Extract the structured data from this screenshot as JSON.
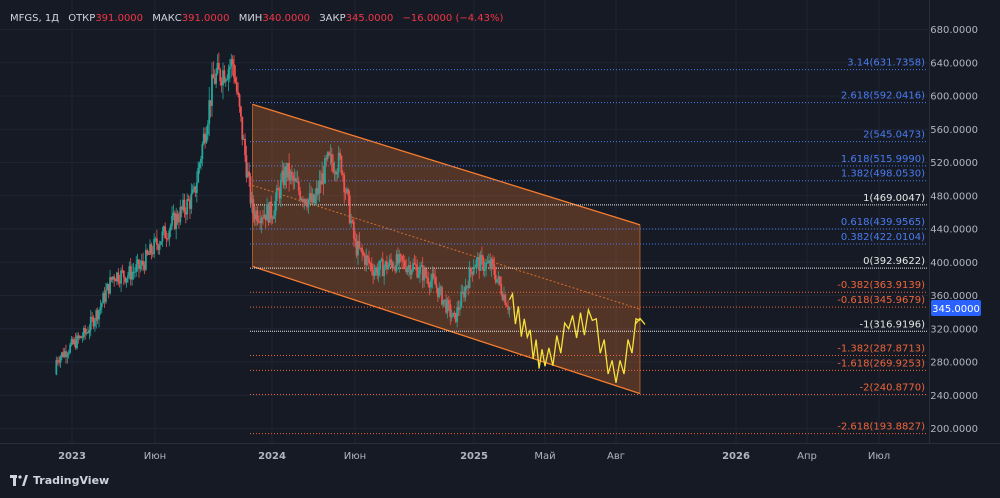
{
  "header": {
    "symbol": "MFGS, 1Д",
    "open_label": "ОТКР",
    "open": "391.0000",
    "high_label": "МАКС",
    "high": "391.0000",
    "low_label": "МИН",
    "low": "340.0000",
    "close_label": "ЗАКР",
    "close": "345.0000",
    "change": "−16.0000 (−4.43%)"
  },
  "brand": {
    "name": "TradingView",
    "icon": "tradingview-logo-icon"
  },
  "colors": {
    "background": "#161a25",
    "up": "#26a69a",
    "down": "#ef5350",
    "channel": "#f57c2f",
    "fib_pos": "#4a7cf0",
    "fib_neg": "#f0653a",
    "projection": "#f5e13a",
    "price_tag": "#2962ff"
  },
  "chart_data": {
    "type": "candlestick",
    "yaxis": {
      "ticks": [
        "680.0000",
        "640.0000",
        "600.0000",
        "560.0000",
        "520.0000",
        "480.0000",
        "440.0000",
        "400.0000",
        "360.0000",
        "320.0000",
        "280.0000",
        "240.0000",
        "200.0000"
      ],
      "range": [
        180,
        700
      ]
    },
    "xaxis": {
      "ticks": [
        "2023",
        "Июн",
        "2024",
        "Июн",
        "2025",
        "Май",
        "Авг",
        "2026",
        "Апр",
        "Июл"
      ]
    },
    "last_price": "345.0000",
    "price_series": [
      {
        "date": "2022-11",
        "price": 265
      },
      {
        "date": "2022-12",
        "price": 285
      },
      {
        "date": "2023-01",
        "price": 300
      },
      {
        "date": "2023-02",
        "price": 315
      },
      {
        "date": "2023-03",
        "price": 345
      },
      {
        "date": "2023-04",
        "price": 385
      },
      {
        "date": "2023-05",
        "price": 385
      },
      {
        "date": "2023-06",
        "price": 395
      },
      {
        "date": "2023-07",
        "price": 420
      },
      {
        "date": "2023-08",
        "price": 450
      },
      {
        "date": "2023-09",
        "price": 480
      },
      {
        "date": "2023-10",
        "price": 620
      },
      {
        "date": "2023-11",
        "price": 640
      },
      {
        "date": "2023-12",
        "price": 460
      },
      {
        "date": "2024-01",
        "price": 460
      },
      {
        "date": "2024-02",
        "price": 510
      },
      {
        "date": "2024-03",
        "price": 485
      },
      {
        "date": "2024-04",
        "price": 470
      },
      {
        "date": "2024-05",
        "price": 520
      },
      {
        "date": "2024-06",
        "price": 520
      },
      {
        "date": "2024-07",
        "price": 420
      },
      {
        "date": "2024-08",
        "price": 390
      },
      {
        "date": "2024-09",
        "price": 400
      },
      {
        "date": "2024-10",
        "price": 395
      },
      {
        "date": "2024-11",
        "price": 375
      },
      {
        "date": "2024-12",
        "price": 330
      },
      {
        "date": "2025-01",
        "price": 400
      },
      {
        "date": "2025-02",
        "price": 395
      },
      {
        "date": "2025-03",
        "price": 345
      }
    ],
    "fib_levels": [
      {
        "label": "3.14(631.7358)",
        "value": 631.7358,
        "kind": "pos"
      },
      {
        "label": "2.618(592.0416)",
        "value": 592.0416,
        "kind": "pos"
      },
      {
        "label": "2(545.0473)",
        "value": 545.0473,
        "kind": "pos"
      },
      {
        "label": "1.618(515.9990)",
        "value": 515.999,
        "kind": "pos"
      },
      {
        "label": "1.382(498.0530)",
        "value": 498.053,
        "kind": "pos"
      },
      {
        "label": "1(469.0047)",
        "value": 469.0047,
        "kind": "white"
      },
      {
        "label": "0.618(439.9565)",
        "value": 439.9565,
        "kind": "pos"
      },
      {
        "label": "0.382(422.0104)",
        "value": 422.0104,
        "kind": "pos"
      },
      {
        "label": "0(392.9622)",
        "value": 392.9622,
        "kind": "white"
      },
      {
        "label": "-0.382(363.9139)",
        "value": 363.9139,
        "kind": "neg"
      },
      {
        "label": "-0.618(345.9679)",
        "value": 345.9679,
        "kind": "neg"
      },
      {
        "label": "-1(316.9196)",
        "value": 316.9196,
        "kind": "white"
      },
      {
        "label": "-1.382(287.8713)",
        "value": 287.8713,
        "kind": "neg"
      },
      {
        "label": "-1.618(269.9253)",
        "value": 269.9253,
        "kind": "neg"
      },
      {
        "label": "-2(240.8770)",
        "value": 240.877,
        "kind": "neg"
      },
      {
        "label": "-2.618(193.8827)",
        "value": 193.8827,
        "kind": "neg"
      }
    ],
    "channel": {
      "upper": [
        {
          "date": "2023-12",
          "price": 590
        },
        {
          "date": "2025-09",
          "price": 445
        }
      ],
      "lower": [
        {
          "date": "2023-12",
          "price": 395
        },
        {
          "date": "2025-09",
          "price": 242
        }
      ]
    },
    "projection": [
      {
        "date": "2025-03",
        "price": 355
      },
      {
        "date": "2025-04",
        "price": 310
      },
      {
        "date": "2025-05",
        "price": 275
      },
      {
        "date": "2025-06",
        "price": 320
      },
      {
        "date": "2025-07",
        "price": 330
      },
      {
        "date": "2025-08",
        "price": 255
      },
      {
        "date": "2025-09",
        "price": 330
      }
    ]
  }
}
